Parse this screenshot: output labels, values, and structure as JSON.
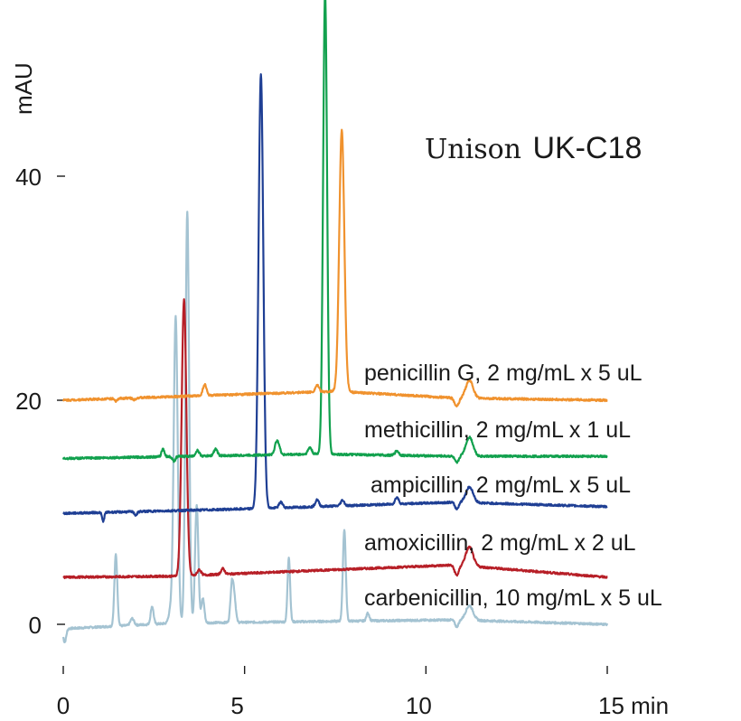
{
  "chart_data": {
    "type": "line",
    "ylabel": "mAU",
    "xlim": [
      0,
      15
    ],
    "ylim": [
      -4,
      55
    ],
    "x_ticks": [
      {
        "value": 0,
        "label": "0"
      },
      {
        "value": 5,
        "label": "5"
      },
      {
        "value": 10,
        "label": "10"
      },
      {
        "value": 15,
        "label": "15 min"
      }
    ],
    "y_ticks": [
      {
        "value": 0,
        "label": "0"
      },
      {
        "value": 20,
        "label": "20"
      },
      {
        "value": 40,
        "label": "40"
      }
    ],
    "annotation": {
      "brand": "Unison",
      "model": "UK-C18"
    },
    "grid": false,
    "series": [
      {
        "name": "penicillin G, 2 mg/mL x 5 uL",
        "color": "#f0922e",
        "baseline": 20.0,
        "drift": [
          [
            0,
            0
          ],
          [
            7.5,
            0.8
          ],
          [
            10.8,
            0.2
          ],
          [
            15,
            0.0
          ]
        ],
        "peaks": [
          [
            1.45,
            -0.25,
            0.04
          ],
          [
            1.95,
            -0.15,
            0.04
          ],
          [
            3.9,
            1.0,
            0.05
          ],
          [
            7.68,
            23.3,
            0.07
          ],
          [
            7.0,
            0.6,
            0.05
          ],
          [
            10.85,
            -0.7,
            0.06
          ],
          [
            11.2,
            1.6,
            0.1
          ]
        ]
      },
      {
        "name": "methicillin, 2 mg/mL x 1 uL",
        "color": "#12a14e",
        "baseline": 14.8,
        "drift": [
          [
            0,
            0
          ],
          [
            7.0,
            0.4
          ],
          [
            10.8,
            0.2
          ],
          [
            15,
            0.2
          ]
        ],
        "peaks": [
          [
            2.75,
            0.7,
            0.04
          ],
          [
            3.05,
            -0.4,
            0.04
          ],
          [
            3.7,
            0.5,
            0.05
          ],
          [
            4.2,
            0.6,
            0.05
          ],
          [
            5.9,
            1.3,
            0.06
          ],
          [
            6.8,
            0.6,
            0.05
          ],
          [
            7.22,
            41.2,
            0.055
          ],
          [
            9.2,
            0.4,
            0.05
          ],
          [
            10.85,
            -0.6,
            0.05
          ],
          [
            11.2,
            1.7,
            0.1
          ]
        ]
      },
      {
        "name": "ampicillin, 2 mg/mL x 5 uL",
        "color": "#1f3f94",
        "baseline": 9.9,
        "drift": [
          [
            0,
            0
          ],
          [
            5.0,
            0.4
          ],
          [
            10.8,
            1.0
          ],
          [
            15,
            0.6
          ]
        ],
        "peaks": [
          [
            1.1,
            -0.8,
            0.03
          ],
          [
            2.0,
            -0.3,
            0.04
          ],
          [
            5.45,
            38.8,
            0.065
          ],
          [
            6.0,
            0.5,
            0.05
          ],
          [
            7.0,
            0.6,
            0.05
          ],
          [
            7.7,
            0.5,
            0.05
          ],
          [
            9.2,
            0.6,
            0.05
          ],
          [
            10.85,
            -0.6,
            0.05
          ],
          [
            11.2,
            1.4,
            0.1
          ]
        ]
      },
      {
        "name": "amoxicillin, 2 mg/mL x 2 uL",
        "color": "#b71f27",
        "baseline": 4.2,
        "drift": [
          [
            0,
            0
          ],
          [
            3.1,
            0.1
          ],
          [
            10.8,
            1.1
          ],
          [
            15,
            0.0
          ]
        ],
        "peaks": [
          [
            3.33,
            24.6,
            0.065
          ],
          [
            3.75,
            0.5,
            0.05
          ],
          [
            4.4,
            0.5,
            0.05
          ],
          [
            10.85,
            -0.9,
            0.06
          ],
          [
            11.2,
            1.7,
            0.1
          ]
        ]
      },
      {
        "name": "carbenicillin, 10 mg/mL x 5 uL",
        "color": "#a4c3d2",
        "baseline": -0.4,
        "drift": [
          [
            0,
            0
          ],
          [
            3.0,
            0.5
          ],
          [
            10.8,
            0.8
          ],
          [
            15,
            0.4
          ]
        ],
        "peaks": [
          [
            0.04,
            -1.2,
            0.04
          ],
          [
            1.45,
            6.4,
            0.04
          ],
          [
            1.9,
            0.6,
            0.05
          ],
          [
            2.45,
            1.6,
            0.04
          ],
          [
            2.95,
            1.0,
            0.05
          ],
          [
            3.1,
            27.4,
            0.055
          ],
          [
            3.42,
            36.7,
            0.05
          ],
          [
            3.68,
            10.6,
            0.045
          ],
          [
            3.85,
            2.2,
            0.04
          ],
          [
            4.65,
            3.4,
            0.04
          ],
          [
            4.72,
            2.0,
            0.04
          ],
          [
            6.22,
            5.8,
            0.035
          ],
          [
            7.75,
            8.2,
            0.04
          ],
          [
            8.4,
            0.7,
            0.04
          ],
          [
            10.85,
            -0.6,
            0.05
          ],
          [
            11.2,
            1.3,
            0.1
          ]
        ]
      }
    ]
  }
}
